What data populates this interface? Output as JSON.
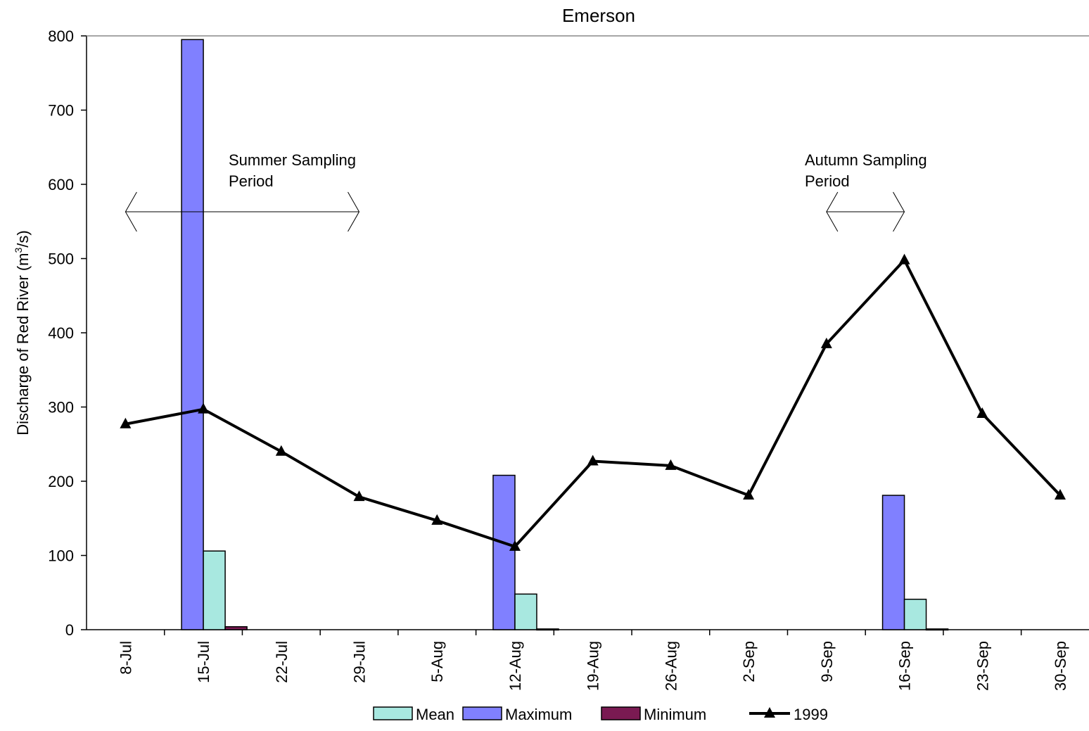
{
  "chart_data": {
    "type": "bar",
    "title": "Emerson",
    "ylabel_main": "Discharge of Red River (m",
    "ylabel_sup": "3",
    "ylabel_tail": "/s)",
    "ylim": [
      0,
      800
    ],
    "yticks": [
      0,
      100,
      200,
      300,
      400,
      500,
      600,
      700,
      800
    ],
    "categories": [
      "8-Jul",
      "15-Jul",
      "22-Jul",
      "29-Jul",
      "5-Aug",
      "12-Aug",
      "19-Aug",
      "26-Aug",
      "2-Sep",
      "9-Sep",
      "16-Sep",
      "23-Sep",
      "30-Sep"
    ],
    "grid": false,
    "legend_position": "bottom",
    "bar_series": [
      {
        "name": "Mean",
        "color": "#a8e8e0",
        "values": [
          null,
          106,
          null,
          null,
          null,
          48,
          null,
          null,
          null,
          null,
          41,
          null,
          null
        ]
      },
      {
        "name": "Maximum",
        "color": "#8080ff",
        "values": [
          null,
          795,
          null,
          null,
          null,
          208,
          null,
          null,
          null,
          null,
          181,
          null,
          null
        ]
      },
      {
        "name": "Minimum",
        "color": "#7a1a52",
        "values": [
          null,
          4,
          null,
          null,
          null,
          1,
          null,
          null,
          null,
          null,
          1,
          null,
          null
        ]
      }
    ],
    "line_series": [
      {
        "name": "1999",
        "color": "#000000",
        "values": [
          277,
          297,
          240,
          179,
          147,
          112,
          227,
          221,
          181,
          385,
          498,
          291,
          181
        ]
      }
    ],
    "annotations": [
      {
        "lines": [
          "Summer Sampling",
          "Period"
        ],
        "arrow_from": "8-Jul",
        "arrow_to": "29-Jul",
        "arrow_y": 563
      },
      {
        "lines": [
          "Autumn Sampling",
          "Period"
        ],
        "arrow_from": "9-Sep",
        "arrow_to": "16-Sep",
        "arrow_y": 563
      }
    ]
  }
}
